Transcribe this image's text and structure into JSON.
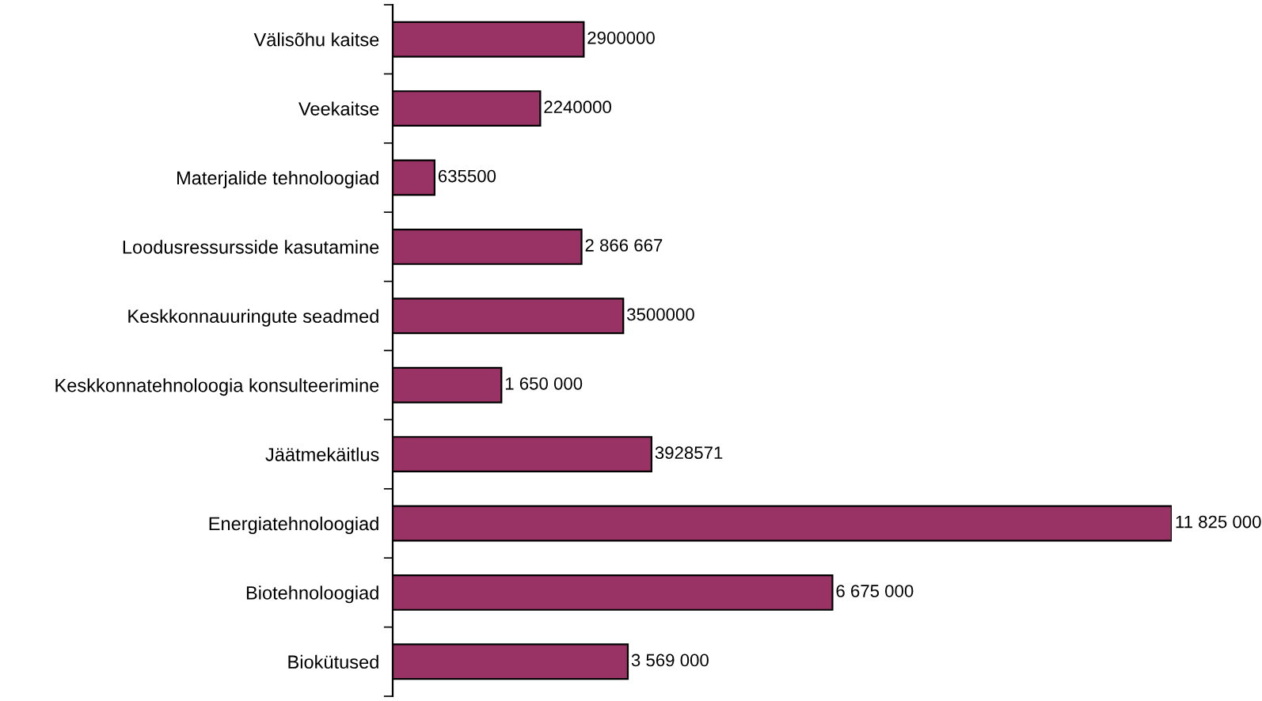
{
  "chart_data": {
    "type": "bar",
    "orientation": "horizontal",
    "categories": [
      "Välisõhu kaitse",
      "Veekaitse",
      "Materjalide tehnoloogiad",
      "Loodusressursside kasutamine",
      "Keskkonnauuringute seadmed",
      "Keskkonnatehnoloogia konsulteerimine",
      "Jäätmekäitlus",
      "Energiatehnoloogiad",
      "Biotehnoloogiad",
      "Biokütused"
    ],
    "values": [
      2900000,
      2240000,
      635500,
      2866667,
      3500000,
      1650000,
      3928571,
      11825000,
      6675000,
      3569000
    ],
    "value_labels": [
      "2900000",
      "2240000",
      "635500",
      "2 866 667",
      "3500000",
      "1 650 000",
      "3928571",
      "11 825 000",
      "6 675 000",
      "3 569 000"
    ],
    "color": "#993366",
    "tick_labels": "y",
    "grid": false,
    "legend": false
  }
}
